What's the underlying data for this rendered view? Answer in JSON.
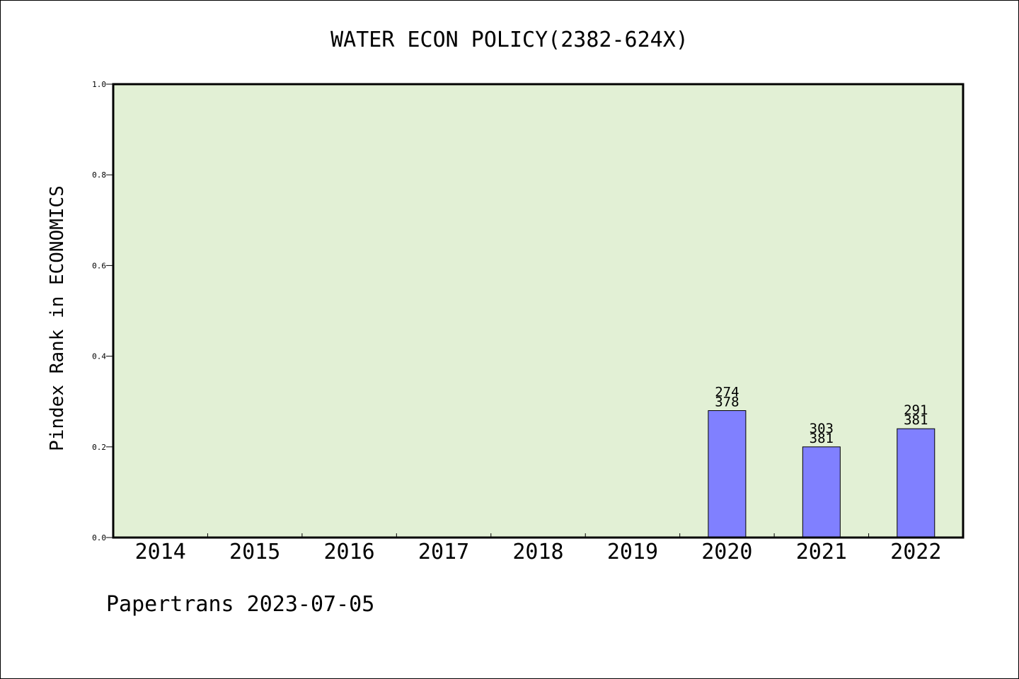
{
  "chart_data": {
    "type": "bar",
    "title": "WATER ECON POLICY(2382-624X)",
    "xlabel": "",
    "ylabel": "Pindex Rank in ECONOMICS",
    "categories": [
      "2014",
      "2015",
      "2016",
      "2017",
      "2018",
      "2019",
      "2020",
      "2021",
      "2022"
    ],
    "values": [
      null,
      null,
      null,
      null,
      null,
      null,
      0.28,
      0.2,
      0.24
    ],
    "bar_labels": [
      null,
      null,
      null,
      null,
      null,
      null,
      [
        "274",
        "378"
      ],
      [
        "303",
        "381"
      ],
      [
        "291",
        "381"
      ]
    ],
    "ylim": [
      0,
      1.0
    ],
    "yticks": [
      "0.0",
      "0.2",
      "0.4",
      "0.6",
      "0.8",
      "1.0"
    ],
    "ytick_values": [
      0,
      0.2,
      0.4,
      0.6,
      0.8,
      1.0
    ],
    "grid": false,
    "legend": "none",
    "colors": {
      "plot_background": "#e2f0d5",
      "bar_fill": "#8080ff",
      "bar_stroke": "#000000"
    }
  },
  "footer": {
    "credit": "Papertrans 2023-07-05"
  }
}
